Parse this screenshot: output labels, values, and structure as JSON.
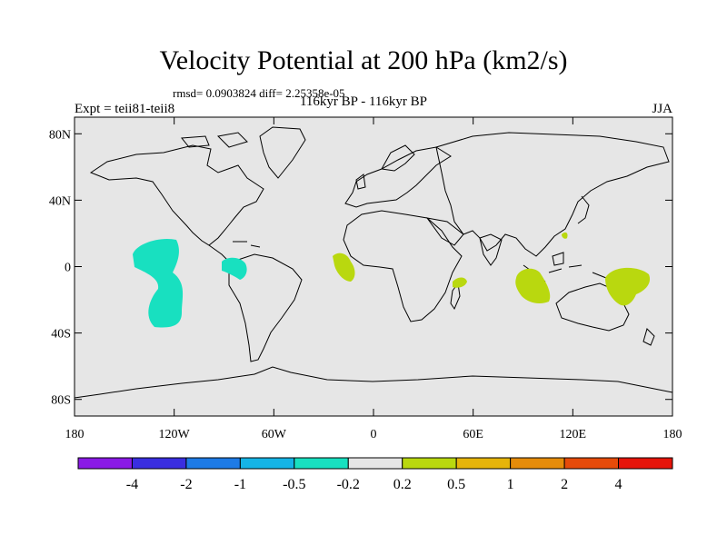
{
  "title": "Velocity Potential at 200 hPa (km2/s)",
  "stats_text": "rmsd= 0.0903824 diff= 2.25358e-05",
  "experiment_text": "Expt = teii81-teii8",
  "period_text": "116kyr BP - 116kyr BP",
  "season_text": "JJA",
  "map": {
    "projection": "cylindrical equidistant",
    "lon_range": [
      -180,
      180
    ],
    "lat_range": [
      -90,
      90
    ],
    "background_color": "#e6e6e6",
    "lat_tick_labels": [
      "80N",
      "40N",
      "0",
      "40S",
      "80S"
    ],
    "lon_tick_labels": [
      "180",
      "120W",
      "60W",
      "0",
      "60E",
      "120E",
      "180"
    ]
  },
  "colorbar": {
    "colors": [
      "#8a1ae6",
      "#3a2ee0",
      "#1e7be6",
      "#15b4e6",
      "#18e0c0",
      "#e6e6e6",
      "#b9d80f",
      "#e6b40a",
      "#e68c0a",
      "#e64b0a",
      "#e6140a"
    ],
    "labels": [
      "-4",
      "-2",
      "-1",
      "-0.5",
      "-0.2",
      "0.2",
      "0.5",
      "1",
      "2",
      "4"
    ]
  },
  "features": [
    {
      "name": "central-pacific-negative",
      "sign": "negative",
      "color": "#18e0c0"
    },
    {
      "name": "northern-south-america-negative",
      "sign": "negative",
      "color": "#18e0c0"
    },
    {
      "name": "gulf-of-guinea-positive",
      "sign": "positive",
      "color": "#b9d80f"
    },
    {
      "name": "madagascar-positive",
      "sign": "positive",
      "color": "#b9d80f"
    },
    {
      "name": "indian-ocean-positive",
      "sign": "positive",
      "color": "#b9d80f"
    },
    {
      "name": "western-pacific-positive",
      "sign": "positive",
      "color": "#b9d80f"
    },
    {
      "name": "east-china-sea-positive",
      "sign": "positive",
      "color": "#b9d80f"
    }
  ]
}
